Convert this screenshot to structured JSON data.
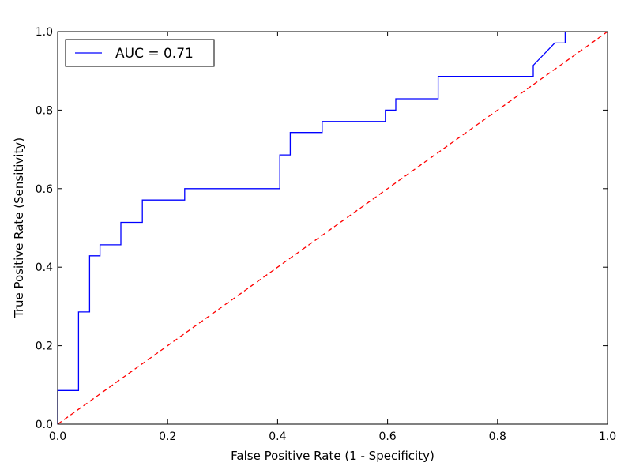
{
  "chart_data": {
    "type": "line",
    "xlabel": "False Positive Rate (1 - Specificity)",
    "ylabel": "True Positive Rate (Sensitivity)",
    "xlim": [
      0.0,
      1.0
    ],
    "ylim": [
      0.0,
      1.0
    ],
    "xticks": [
      "0.0",
      "0.2",
      "0.4",
      "0.6",
      "0.8",
      "1.0"
    ],
    "yticks": [
      "0.0",
      "0.2",
      "0.4",
      "0.6",
      "0.8",
      "1.0"
    ],
    "grid": false,
    "legend_position": "upper-left",
    "series": [
      {
        "name": "AUC = 0.71",
        "color": "#0000ff",
        "style": "solid",
        "x": [
          0.0,
          0.0,
          0.038,
          0.038,
          0.058,
          0.058,
          0.077,
          0.077,
          0.115,
          0.115,
          0.154,
          0.154,
          0.231,
          0.231,
          0.404,
          0.404,
          0.423,
          0.423,
          0.481,
          0.481,
          0.596,
          0.596,
          0.615,
          0.615,
          0.692,
          0.692,
          0.865,
          0.865,
          0.904,
          0.923,
          0.923
        ],
        "y": [
          0.0,
          0.086,
          0.086,
          0.286,
          0.286,
          0.429,
          0.429,
          0.457,
          0.457,
          0.514,
          0.514,
          0.571,
          0.571,
          0.6,
          0.6,
          0.686,
          0.686,
          0.743,
          0.743,
          0.771,
          0.771,
          0.8,
          0.8,
          0.829,
          0.829,
          0.886,
          0.886,
          0.914,
          0.971,
          0.971,
          1.0
        ]
      },
      {
        "name": "",
        "color": "#ff0000",
        "style": "dashed",
        "x": [
          0.0,
          1.0
        ],
        "y": [
          0.0,
          1.0
        ]
      }
    ]
  }
}
